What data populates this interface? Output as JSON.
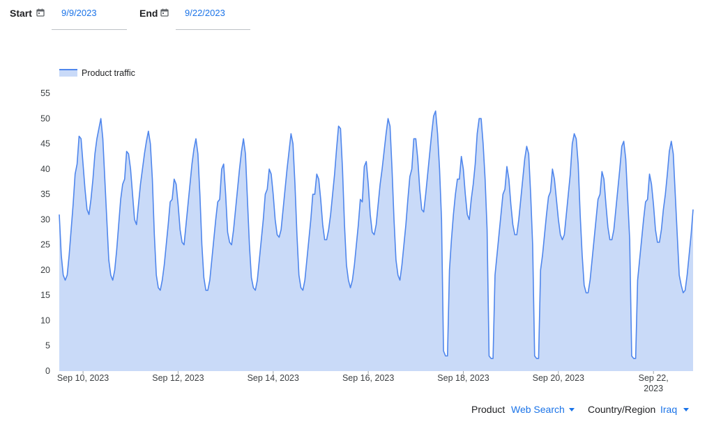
{
  "controls": {
    "start_label": "Start",
    "start_value": "9/9/2023",
    "end_label": "End",
    "end_value": "9/22/2023",
    "product_label": "Product",
    "product_value": "Web Search",
    "region_label": "Country/Region",
    "region_value": "Iraq"
  },
  "icons": {
    "calendar": "calendar-icon",
    "dropdown": "caret-down-icon"
  },
  "colors": {
    "series_line": "#4f86ec",
    "series_fill": "#c9daf8",
    "accent": "#1a73e8"
  },
  "chart_data": {
    "type": "area",
    "legend": {
      "position": "top-left",
      "entries": [
        "Product traffic"
      ]
    },
    "ylim": [
      0,
      55
    ],
    "yticks": [
      0,
      5,
      10,
      15,
      20,
      25,
      30,
      35,
      40,
      45,
      50,
      55
    ],
    "xticks": [
      {
        "date": "2023-09-10",
        "label": [
          "Sep 10, 2023"
        ]
      },
      {
        "date": "2023-09-12",
        "label": [
          "Sep 12, 2023"
        ]
      },
      {
        "date": "2023-09-14",
        "label": [
          "Sep 14, 2023"
        ]
      },
      {
        "date": "2023-09-16",
        "label": [
          "Sep 16, 2023"
        ]
      },
      {
        "date": "2023-09-18",
        "label": [
          "Sep 18, 2023"
        ]
      },
      {
        "date": "2023-09-20",
        "label": [
          "Sep 20, 2023"
        ]
      },
      {
        "date": "2023-09-22",
        "label": [
          "Sep 22,",
          "2023"
        ]
      }
    ],
    "grid": false,
    "x_start": "2023-09-09T12:00",
    "x_step_hours": 1,
    "series": [
      {
        "name": "Product traffic",
        "values": [
          31,
          23,
          19,
          18,
          19,
          23,
          28,
          33,
          39,
          41,
          46.5,
          46,
          41,
          36,
          32,
          31,
          34,
          38,
          43,
          46,
          48,
          50,
          46,
          38,
          30,
          22,
          19,
          18,
          20,
          24,
          29,
          34,
          37,
          38,
          43.5,
          43,
          40,
          35,
          30,
          29,
          33,
          37,
          40,
          43,
          45.5,
          47.5,
          45,
          38,
          27,
          19,
          16.5,
          16,
          18,
          21,
          25,
          29,
          33.5,
          34,
          38,
          37,
          33,
          28,
          25.5,
          25,
          29,
          33,
          37,
          41,
          44,
          46,
          43,
          35,
          25,
          18.5,
          16,
          16,
          18,
          22,
          26,
          30,
          33.5,
          34,
          40,
          41,
          35,
          27.5,
          25.5,
          25,
          28,
          32,
          36,
          40,
          43.5,
          46,
          43,
          34,
          25,
          18.5,
          16.5,
          16,
          18,
          22,
          26,
          30,
          35,
          36,
          40,
          39,
          35,
          30,
          27,
          26.5,
          28,
          32,
          36,
          40,
          43.5,
          47,
          45,
          37,
          27,
          19,
          16.5,
          16,
          18,
          22,
          26,
          30,
          35,
          35,
          39,
          38,
          34,
          29,
          26,
          26,
          28,
          31,
          35,
          39,
          44,
          48.5,
          48,
          40,
          29,
          21,
          18,
          16.5,
          18,
          21,
          25,
          29,
          34,
          33.5,
          40.5,
          41.5,
          37,
          31,
          27.5,
          27,
          29,
          33,
          37,
          40,
          43.5,
          47,
          50,
          48.5,
          40,
          30,
          22,
          19,
          18,
          21,
          25,
          29,
          34,
          38.5,
          40,
          46,
          46,
          42,
          36,
          32,
          31.5,
          35,
          39,
          43,
          47,
          50.5,
          51.5,
          47,
          40,
          30,
          4,
          3,
          3,
          20,
          26,
          31,
          35,
          38,
          38,
          42.5,
          40,
          35,
          31,
          30,
          34,
          37,
          41,
          47,
          50,
          50,
          45,
          38,
          28,
          3,
          2.5,
          2.5,
          19,
          23,
          27,
          31,
          35,
          36,
          40.5,
          38,
          33,
          29,
          27,
          27,
          30,
          34,
          38,
          42,
          44.5,
          43,
          35,
          25,
          3,
          2.5,
          2.5,
          20,
          23,
          27,
          31,
          34.5,
          35.5,
          40,
          38,
          34,
          30,
          27,
          26,
          27,
          31,
          35,
          39,
          45,
          47,
          46,
          41,
          31,
          23,
          17,
          15.5,
          15.5,
          18,
          22,
          26,
          30,
          34,
          35,
          39.5,
          38,
          33,
          28.5,
          26,
          26,
          28,
          32,
          36,
          40,
          44.5,
          45.5,
          42,
          34,
          26,
          3,
          2.5,
          2.5,
          18,
          22,
          26,
          30,
          33.5,
          34,
          39,
          37,
          33,
          28,
          25.5,
          25.5,
          28,
          32,
          35,
          39,
          43.5,
          45.5,
          43,
          35,
          27,
          19,
          17,
          15.5,
          16,
          19,
          23,
          27,
          32
        ]
      }
    ]
  }
}
